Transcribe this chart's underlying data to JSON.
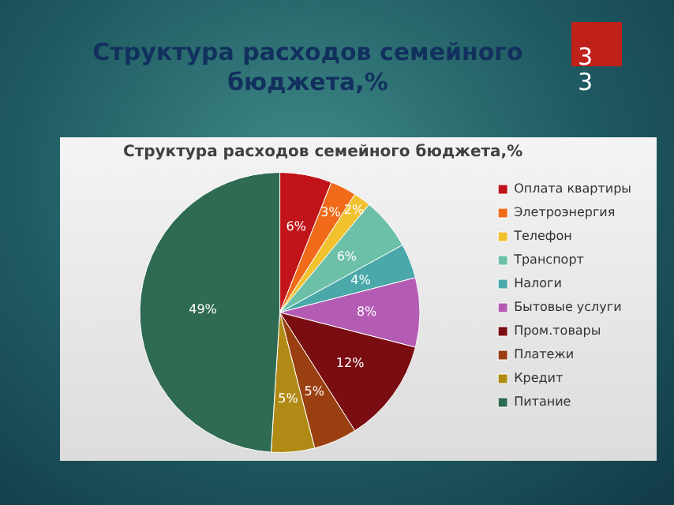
{
  "chart_data": {
    "type": "pie",
    "title": "Структура расходов семейного бюджета,%",
    "subtitle": "Структура расходов семейного бюджета,%",
    "annotations": [
      "33"
    ],
    "categories": [
      "Оплата квартиры",
      "Элетроэнергия",
      "Телефон",
      "Транспорт",
      "Налоги",
      "Бытовые услуги",
      "Пром.товары",
      "Платежи",
      "Кредит",
      "Питание"
    ],
    "values": [
      6,
      3,
      2,
      6,
      4,
      8,
      12,
      5,
      5,
      49
    ],
    "value_labels": [
      "6%",
      "3%",
      "2%",
      "6%",
      "4%",
      "8%",
      "12%",
      "5%",
      "5%",
      "49%"
    ],
    "colors": [
      "#c0141a",
      "#f06a1a",
      "#f2c12e",
      "#6cc0a8",
      "#4aa8a8",
      "#b45cb4",
      "#7a0d12",
      "#9a4010",
      "#b08a14",
      "#2f6a52"
    ],
    "legend": "right"
  }
}
